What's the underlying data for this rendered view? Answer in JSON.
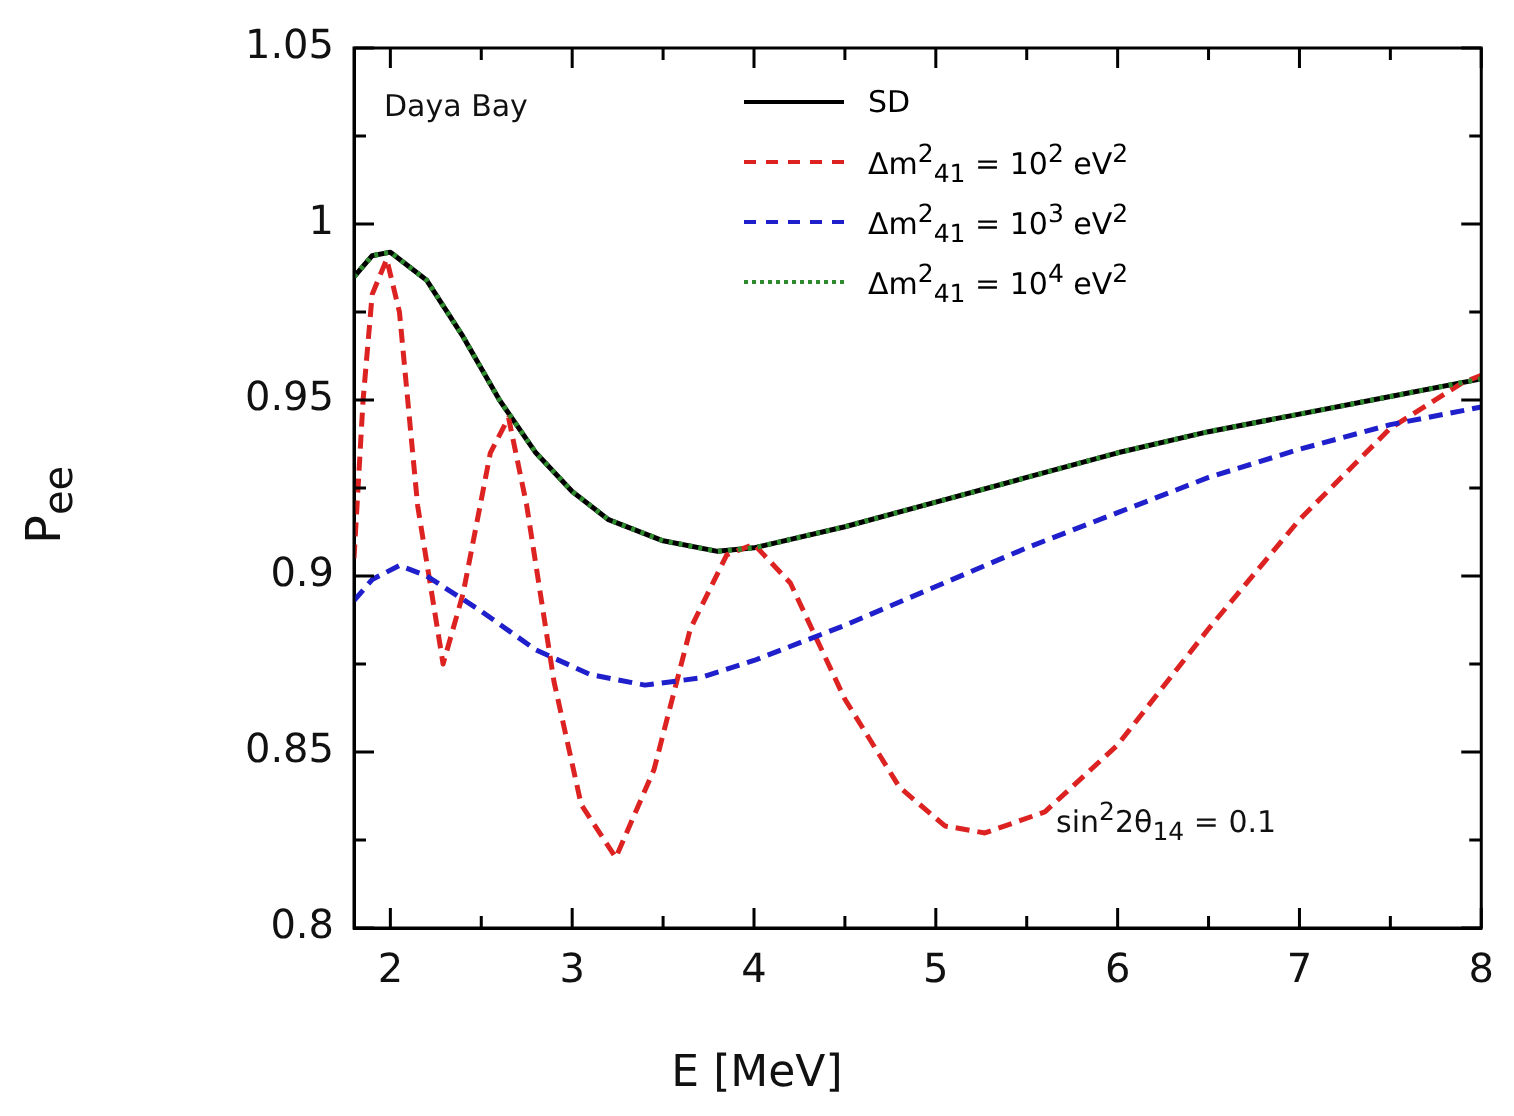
{
  "chart_data": {
    "type": "line",
    "xlabel": "E [MeV]",
    "ylabel": "P$_{ee}$",
    "xlim": [
      1.8,
      8
    ],
    "ylim": [
      0.8,
      1.05
    ],
    "xticks": [
      2,
      {
        "value": 2.5,
        "label": null
      },
      3,
      {
        "value": 3.5,
        "label": null
      },
      4,
      {
        "value": 4.5,
        "label": null
      },
      5,
      {
        "value": 5.5,
        "label": null
      },
      6,
      {
        "value": 6.5,
        "label": null
      },
      7,
      {
        "value": 7.5,
        "label": null
      },
      8
    ],
    "yticks": [
      0.8,
      {
        "value": 0.825,
        "label": null
      },
      0.85,
      {
        "value": 0.875,
        "label": null
      },
      0.9,
      {
        "value": 0.925,
        "label": null
      },
      0.95,
      {
        "value": 0.975,
        "label": null
      },
      1,
      {
        "value": 1.025,
        "label": null
      },
      1.05
    ],
    "grid": false,
    "legend": "top",
    "marker": "none",
    "annotations": [
      "Daya Bay",
      "sin$^{2}$2θ$_{14}$ = 0.1"
    ],
    "series": [
      {
        "name": "SD",
        "color": "#000000",
        "line_style": "solid",
        "x": [
          1.8,
          1.9,
          2.0,
          2.2,
          2.4,
          2.6,
          2.8,
          3.0,
          3.2,
          3.5,
          3.8,
          4.0,
          4.5,
          5,
          5.5,
          6,
          6.5,
          7,
          7.5,
          8
        ],
        "values": [
          0.985,
          0.991,
          0.992,
          0.984,
          0.968,
          0.95,
          0.935,
          0.924,
          0.916,
          0.91,
          0.907,
          0.908,
          0.914,
          0.921,
          0.928,
          0.935,
          0.941,
          0.946,
          0.951,
          0.956
        ]
      },
      {
        "name": "Δm$^{2}$$_{41}$ = 10$^{2}$ eV$^{2}$",
        "color": "#dd2222",
        "line_style": "dashed",
        "x": [
          1.8,
          1.85,
          1.9,
          1.98,
          2.05,
          2.15,
          2.29,
          2.4,
          2.55,
          2.65,
          2.75,
          2.9,
          3.05,
          3.24,
          3.45,
          3.65,
          3.85,
          4.0,
          4.2,
          4.5,
          4.8,
          5.05,
          5.27,
          5.6,
          6,
          6.5,
          7,
          7.5,
          7.9,
          8
        ],
        "values": [
          0.905,
          0.95,
          0.98,
          0.99,
          0.975,
          0.92,
          0.875,
          0.895,
          0.935,
          0.945,
          0.92,
          0.87,
          0.835,
          0.82,
          0.845,
          0.885,
          0.906,
          0.909,
          0.898,
          0.865,
          0.84,
          0.829,
          0.827,
          0.833,
          0.852,
          0.885,
          0.916,
          0.942,
          0.955,
          0.957
        ]
      },
      {
        "name": "Δm$^{2}$$_{41}$ = 10$^{3}$ eV$^{2}$",
        "color": "#1f1fcc",
        "line_style": "dashed",
        "x": [
          1.8,
          1.9,
          2.05,
          2.2,
          2.5,
          2.8,
          3.1,
          3.4,
          3.7,
          4.0,
          4.5,
          5,
          5.5,
          6,
          6.5,
          7,
          7.5,
          8
        ],
        "values": [
          0.893,
          0.899,
          0.903,
          0.9,
          0.89,
          0.879,
          0.872,
          0.869,
          0.871,
          0.876,
          0.886,
          0.897,
          0.908,
          0.918,
          0.928,
          0.936,
          0.943,
          0.948
        ]
      },
      {
        "name": "Δm$^{2}$$_{41}$ = 10$^{4}$ eV$^{2}$",
        "color": "#2e8b2e",
        "line_style": "dotted",
        "x": [
          1.8,
          1.9,
          2.0,
          2.2,
          2.4,
          2.6,
          2.8,
          3.0,
          3.2,
          3.5,
          3.8,
          4.0,
          4.5,
          5,
          5.5,
          6,
          6.5,
          7,
          7.5,
          8
        ],
        "values": [
          0.985,
          0.991,
          0.992,
          0.984,
          0.968,
          0.95,
          0.935,
          0.924,
          0.916,
          0.91,
          0.907,
          0.908,
          0.914,
          0.921,
          0.928,
          0.935,
          0.941,
          0.946,
          0.951,
          0.956
        ]
      }
    ]
  }
}
